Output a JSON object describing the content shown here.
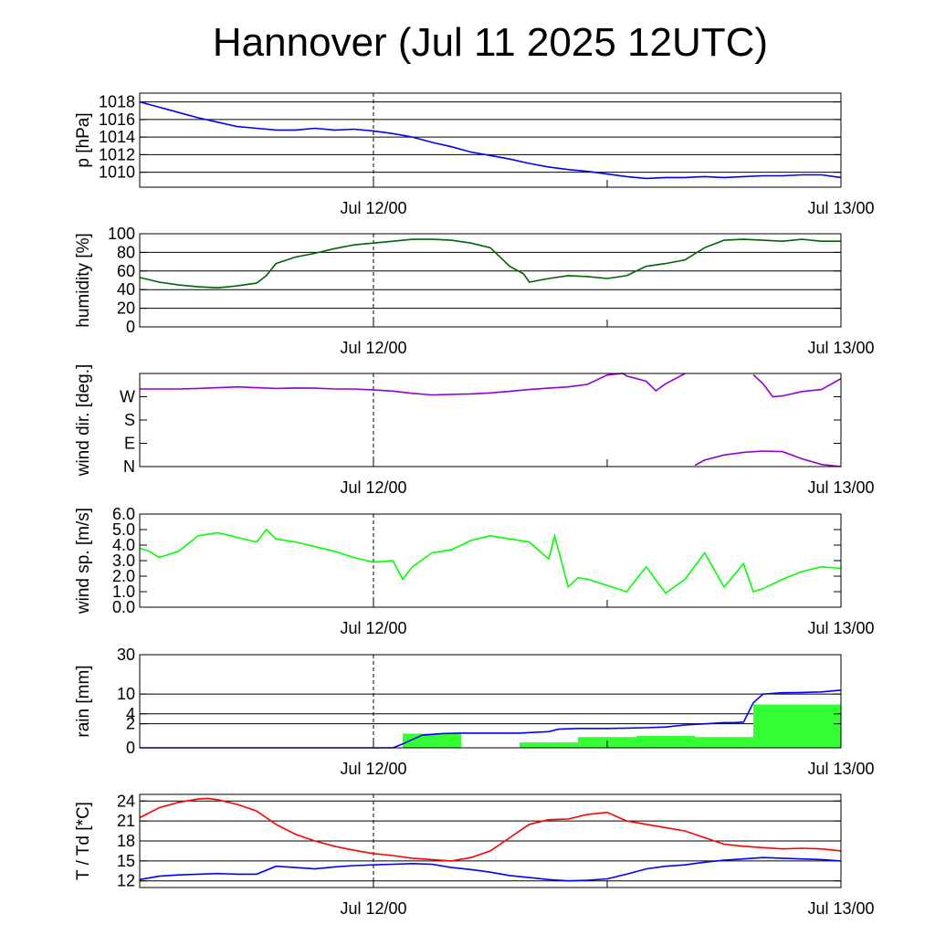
{
  "title": "Hannover (Jul 11 2025 12UTC)",
  "x_tick_labels": [
    "Jul 12/00",
    "Jul 13/00"
  ],
  "chart_data": [
    {
      "type": "line",
      "ylabel": "p [hPa]",
      "ylim": [
        1008.3,
        1019
      ],
      "yticks": [
        1010,
        1012,
        1014,
        1016,
        1018
      ],
      "ytick_labels": [
        "1010",
        "1012",
        "1014",
        "1016",
        "1018"
      ],
      "grid": true,
      "series": [
        {
          "color": "#0000ff",
          "x": [
            0,
            1,
            2,
            3,
            4,
            5,
            6,
            7,
            8,
            9,
            10,
            11,
            12,
            13,
            14,
            15,
            16,
            17,
            18,
            19,
            20,
            21,
            22,
            23,
            24,
            25,
            26,
            27,
            28,
            29,
            30,
            31,
            32,
            33,
            34,
            35,
            36
          ],
          "y": [
            1018.0,
            1017.4,
            1016.8,
            1016.2,
            1015.7,
            1015.2,
            1015.0,
            1014.8,
            1014.8,
            1015.0,
            1014.8,
            1014.9,
            1014.7,
            1014.4,
            1014.0,
            1013.4,
            1012.9,
            1012.3,
            1011.9,
            1011.5,
            1011.0,
            1010.6,
            1010.3,
            1010.1,
            1009.8,
            1009.5,
            1009.3,
            1009.4,
            1009.4,
            1009.5,
            1009.4,
            1009.5,
            1009.6,
            1009.6,
            1009.7,
            1009.7,
            1009.4
          ]
        }
      ]
    },
    {
      "type": "line",
      "ylabel": "humidity [%]",
      "ylim": [
        0,
        100
      ],
      "yticks": [
        0,
        20,
        40,
        60,
        80,
        100
      ],
      "ytick_labels": [
        "0",
        "20",
        "40",
        "60",
        "80",
        "100"
      ],
      "grid": true,
      "series": [
        {
          "color": "#006400",
          "x": [
            0,
            1,
            2,
            3,
            4,
            5,
            6,
            6.5,
            7,
            8,
            9,
            10,
            11,
            12,
            13,
            14,
            15,
            16,
            17,
            18,
            19,
            19.7,
            20,
            21,
            22,
            23,
            24,
            25,
            26,
            27,
            28,
            29,
            30,
            31,
            32,
            33,
            34,
            35,
            36
          ],
          "y": [
            53,
            48,
            45,
            43,
            42,
            44,
            47,
            55,
            68,
            75,
            79,
            84,
            88,
            90,
            92,
            94,
            94,
            93,
            90,
            85,
            65,
            57,
            48,
            52,
            55,
            54,
            52,
            55,
            65,
            68,
            72,
            85,
            93,
            94,
            93,
            92,
            94,
            92,
            92
          ]
        }
      ]
    },
    {
      "type": "line",
      "ylabel": "wind dir. [deg.]",
      "ylim": [
        0,
        360
      ],
      "yticks": [
        0,
        90,
        180,
        270
      ],
      "ytick_labels": [
        "N",
        "E",
        "S",
        "W"
      ],
      "grid": false,
      "series": [
        {
          "color": "#9400d3",
          "x": [
            0,
            1,
            2,
            3,
            4,
            5,
            6,
            7,
            8,
            9,
            10,
            11,
            12,
            13,
            14,
            15,
            16,
            17,
            18,
            19,
            20,
            21,
            22,
            23,
            24,
            24.8,
            25,
            26,
            26.5,
            27,
            27.5,
            28
          ],
          "y": [
            300,
            300,
            300,
            302,
            305,
            308,
            305,
            302,
            304,
            303,
            300,
            300,
            296,
            292,
            283,
            277,
            279,
            281,
            285,
            291,
            298,
            303,
            308,
            318,
            354,
            360,
            350,
            330,
            293,
            320,
            340,
            360
          ]
        },
        {
          "color": "#9400d3",
          "x": [
            28.5,
            29,
            30,
            31,
            32,
            33,
            34,
            35,
            36
          ],
          "y": [
            5,
            25,
            45,
            55,
            60,
            58,
            30,
            8,
            0
          ]
        },
        {
          "color": "#9400d3",
          "x": [
            31.5,
            32,
            32.5,
            33,
            34,
            35,
            36
          ],
          "y": [
            355,
            320,
            270,
            273,
            290,
            298,
            340
          ]
        }
      ]
    },
    {
      "type": "line",
      "ylabel": "wind sp. [m/s]",
      "ylim": [
        0,
        6
      ],
      "yticks": [
        0,
        1,
        2,
        3,
        4,
        5,
        6
      ],
      "ytick_labels": [
        "0.0",
        "1.0",
        "2.0",
        "3.0",
        "4.0",
        "5.0",
        "6.0"
      ],
      "grid": false,
      "series": [
        {
          "color": "#00ff00",
          "x": [
            0,
            0.5,
            1,
            2,
            3,
            4,
            5,
            6,
            6.5,
            7,
            8,
            9,
            10,
            11,
            12,
            13,
            13.5,
            14,
            15,
            16,
            17,
            18,
            19,
            20,
            21,
            21.3,
            22,
            22.5,
            23,
            24,
            25,
            25.5,
            26,
            27,
            28,
            29,
            30,
            31,
            31.5,
            32,
            33,
            34,
            35,
            36
          ],
          "y": [
            3.8,
            3.6,
            3.2,
            3.6,
            4.6,
            4.8,
            4.5,
            4.2,
            5.0,
            4.4,
            4.2,
            3.9,
            3.6,
            3.2,
            2.9,
            3.0,
            1.8,
            2.6,
            3.5,
            3.7,
            4.3,
            4.6,
            4.4,
            4.2,
            3.1,
            4.6,
            1.3,
            1.9,
            1.8,
            1.4,
            1.0,
            1.8,
            2.6,
            0.9,
            1.8,
            3.5,
            1.3,
            2.8,
            1.0,
            1.2,
            1.8,
            2.3,
            2.6,
            2.5
          ]
        }
      ]
    },
    {
      "type": "bar",
      "ylabel": "rain [mm]",
      "ylim": [
        0,
        30
      ],
      "yticks": [
        0,
        2,
        4,
        10,
        30
      ],
      "ytick_labels": [
        "0",
        "2",
        "4",
        "10",
        "30"
      ],
      "grid": true,
      "scale": "sqrt",
      "bars": {
        "color": "#33ff33",
        "x_start": [
          13.5,
          19.5,
          22.5,
          25.5,
          28.5,
          31.5
        ],
        "x_end": [
          16.5,
          22.5,
          25.5,
          28.5,
          31.5,
          36
        ],
        "values": [
          0.7,
          0.1,
          0.4,
          0.5,
          0.4,
          6.5
        ]
      },
      "series": [
        {
          "color": "#0000ff",
          "x": [
            0,
            13,
            13.5,
            14.5,
            15.5,
            16.5,
            19.5,
            20,
            21,
            21.5,
            22.5,
            23,
            24,
            25,
            26,
            27,
            28,
            30,
            30.5,
            31,
            31.5,
            32,
            33,
            34,
            35,
            36
          ],
          "y": [
            0,
            0,
            0.05,
            0.55,
            0.7,
            0.75,
            0.75,
            0.8,
            0.9,
            1.2,
            1.3,
            1.3,
            1.3,
            1.35,
            1.4,
            1.5,
            1.8,
            2.2,
            2.2,
            2.3,
            7.0,
            10.0,
            10.5,
            10.6,
            10.8,
            11.5
          ]
        }
      ]
    },
    {
      "type": "line",
      "ylabel": "T / Td [*C]",
      "ylim": [
        11,
        25
      ],
      "yticks": [
        12,
        15,
        18,
        21,
        24
      ],
      "ytick_labels": [
        "12",
        "15",
        "18",
        "21",
        "24"
      ],
      "grid": true,
      "series": [
        {
          "color": "#ff0000",
          "x": [
            0,
            1,
            2,
            3,
            3.5,
            4,
            5,
            6,
            7,
            8,
            9,
            10,
            11,
            12,
            13,
            14,
            15,
            16,
            17,
            18,
            19,
            20,
            21,
            22,
            23,
            24,
            25,
            26,
            27,
            28,
            29,
            30,
            31,
            32,
            33,
            34,
            35,
            36
          ],
          "y": [
            21.5,
            23.0,
            23.8,
            24.3,
            24.4,
            24.2,
            23.5,
            22.5,
            20.5,
            19.0,
            18.0,
            17.2,
            16.6,
            16.1,
            15.8,
            15.4,
            15.2,
            15.0,
            15.5,
            16.5,
            18.5,
            20.5,
            21.2,
            21.3,
            22.0,
            22.3,
            21.0,
            20.5,
            20.0,
            19.5,
            18.5,
            17.5,
            17.2,
            17.0,
            16.8,
            16.9,
            16.8,
            16.5
          ]
        },
        {
          "color": "#0000ff",
          "x": [
            0,
            1,
            2,
            3,
            4,
            5,
            6,
            7,
            8,
            9,
            10,
            11,
            12,
            13,
            14,
            15,
            16,
            17,
            18,
            19,
            20,
            21,
            22,
            23,
            24,
            25,
            26,
            27,
            28,
            29,
            30,
            31,
            32,
            33,
            34,
            35,
            36
          ],
          "y": [
            12.2,
            12.7,
            12.9,
            13.0,
            13.1,
            13.0,
            13.0,
            14.2,
            14.0,
            13.8,
            14.1,
            14.3,
            14.4,
            14.5,
            14.6,
            14.5,
            14.0,
            13.7,
            13.3,
            12.8,
            12.5,
            12.2,
            12.0,
            12.1,
            12.3,
            13.0,
            13.8,
            14.2,
            14.4,
            14.8,
            15.1,
            15.3,
            15.5,
            15.4,
            15.3,
            15.2,
            15.0
          ]
        }
      ]
    }
  ]
}
